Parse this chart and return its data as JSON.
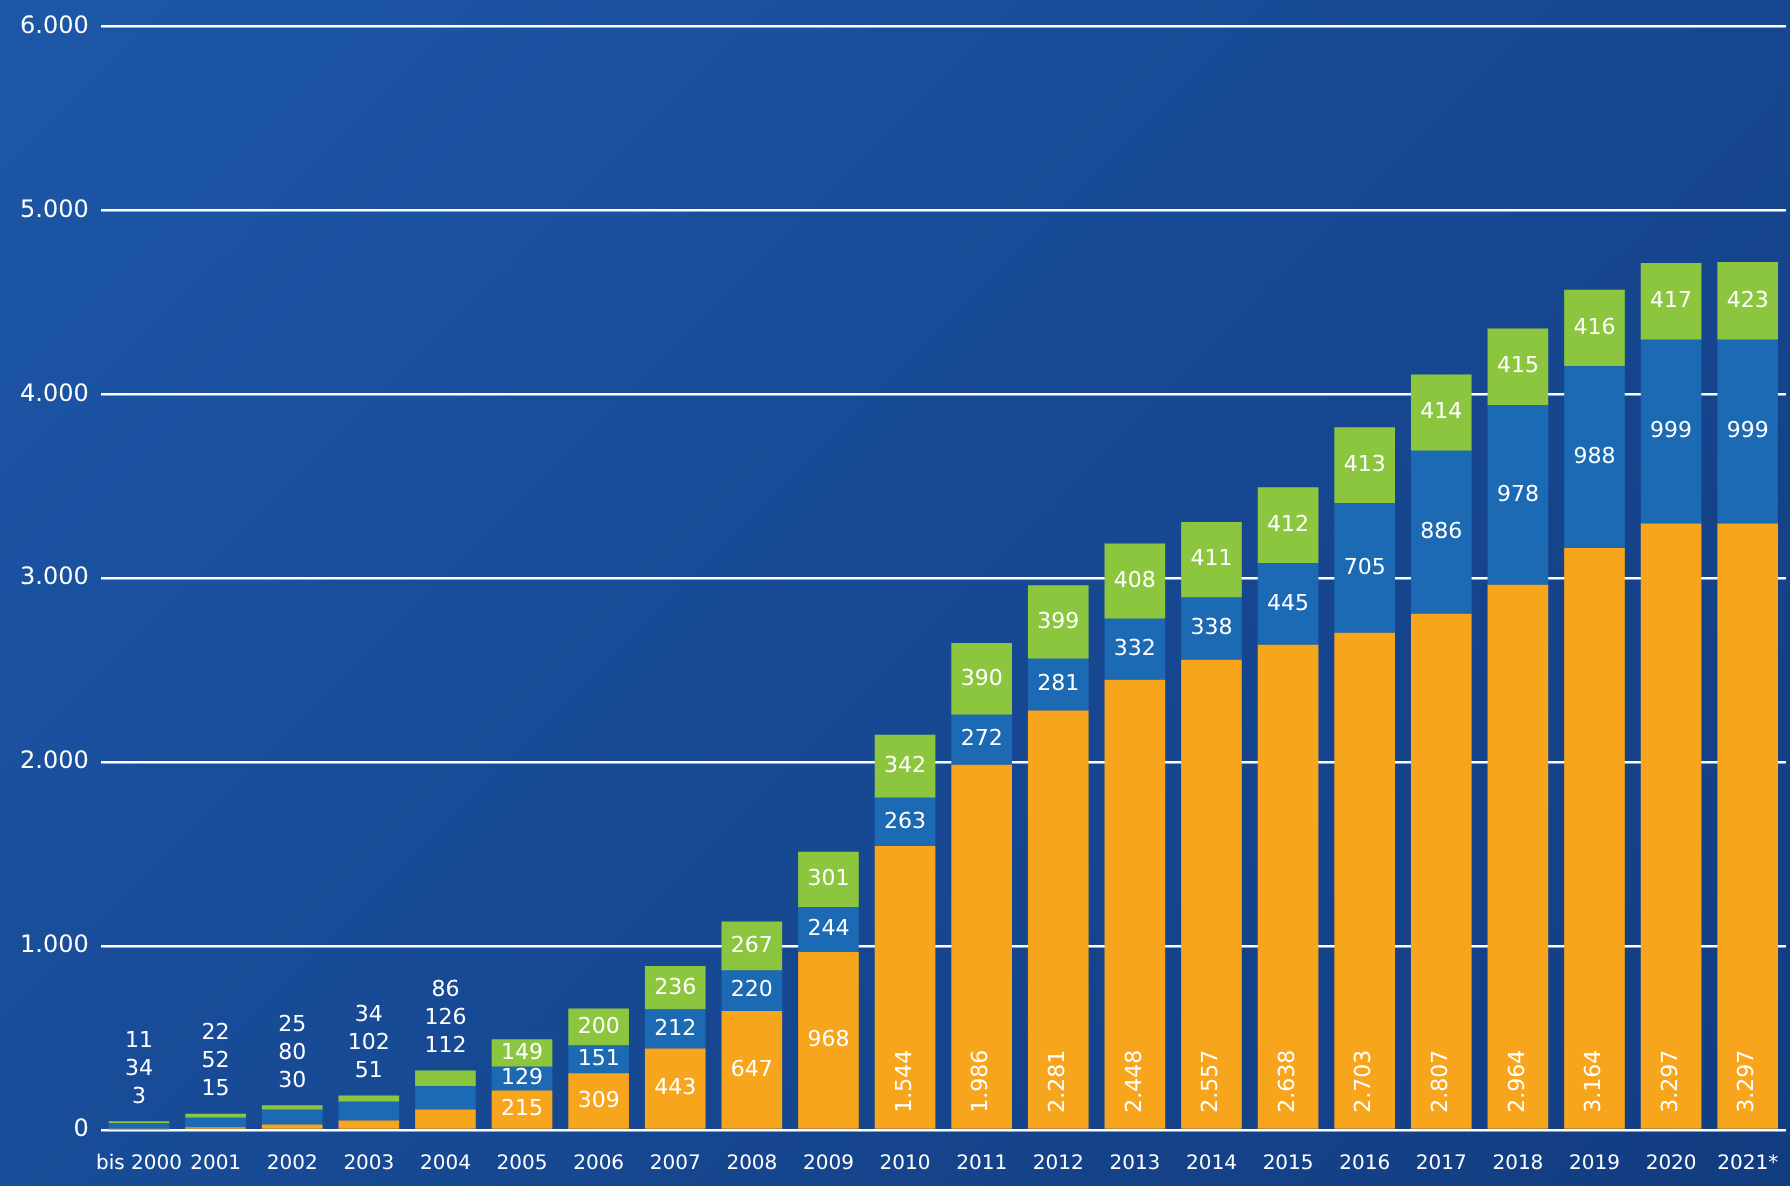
{
  "chart_data": {
    "type": "bar",
    "stacked": true,
    "categories": [
      "bis 2000",
      "2001",
      "2002",
      "2003",
      "2004",
      "2005",
      "2006",
      "2007",
      "2008",
      "2009",
      "2010",
      "2011",
      "2012",
      "2013",
      "2014",
      "2015",
      "2016",
      "2017",
      "2018",
      "2019",
      "2020",
      "2021*"
    ],
    "series": [
      {
        "color": "#f7a51c",
        "values": [
          3,
          15,
          30,
          51,
          112,
          215,
          309,
          443,
          647,
          968,
          1544,
          1986,
          2281,
          2448,
          2557,
          2638,
          2703,
          2807,
          2964,
          3164,
          3297,
          3297
        ],
        "value_labels": [
          "3",
          "15",
          "30",
          "51",
          "112",
          "215",
          "309",
          "443",
          "647",
          "968",
          "1.544",
          "1.986",
          "2.281",
          "2.448",
          "2.557",
          "2.638",
          "2.703",
          "2.807",
          "2.964",
          "3.164",
          "3.297",
          "3.297"
        ]
      },
      {
        "color": "#1c6ab4",
        "values": [
          34,
          52,
          80,
          102,
          126,
          129,
          151,
          212,
          220,
          244,
          263,
          272,
          281,
          332,
          338,
          445,
          705,
          886,
          978,
          988,
          999,
          999
        ],
        "value_labels": [
          "34",
          "52",
          "80",
          "102",
          "126",
          "129",
          "151",
          "212",
          "220",
          "244",
          "263",
          "272",
          "281",
          "332",
          "338",
          "445",
          "705",
          "886",
          "978",
          "988",
          "999",
          "999"
        ]
      },
      {
        "color": "#8cc63f",
        "values": [
          11,
          22,
          25,
          34,
          86,
          149,
          200,
          236,
          267,
          301,
          342,
          390,
          399,
          408,
          411,
          412,
          413,
          414,
          415,
          416,
          417,
          423
        ],
        "value_labels": [
          "11",
          "22",
          "25",
          "34",
          "86",
          "149",
          "200",
          "236",
          "267",
          "301",
          "342",
          "390",
          "399",
          "408",
          "411",
          "412",
          "413",
          "414",
          "415",
          "416",
          "417",
          "423"
        ]
      }
    ],
    "ylim": [
      0,
      6000
    ],
    "yticks": [
      {
        "value": 0,
        "label": "0"
      },
      {
        "value": 1000,
        "label": "1.000"
      },
      {
        "value": 2000,
        "label": "2.000"
      },
      {
        "value": 3000,
        "label": "3.000"
      },
      {
        "value": 4000,
        "label": "4.000"
      },
      {
        "value": 5000,
        "label": "5.000"
      },
      {
        "value": 6000,
        "label": "6.000"
      }
    ],
    "grid": "y",
    "legend": false
  }
}
